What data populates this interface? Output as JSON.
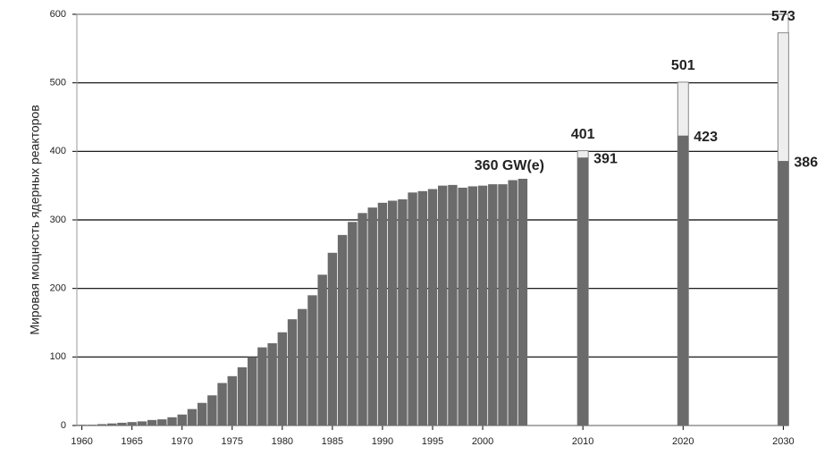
{
  "chart_data": {
    "type": "bar",
    "ylabel": "Мировая мощность ядерных реакторов",
    "x": [
      1960,
      1961,
      1962,
      1963,
      1964,
      1965,
      1966,
      1967,
      1968,
      1969,
      1970,
      1971,
      1972,
      1973,
      1974,
      1975,
      1976,
      1977,
      1978,
      1979,
      1980,
      1981,
      1982,
      1983,
      1984,
      1985,
      1986,
      1987,
      1988,
      1989,
      1990,
      1991,
      1992,
      1993,
      1994,
      1995,
      1996,
      1997,
      1998,
      1999,
      2000,
      2001,
      2002,
      2003,
      2004,
      2010,
      2020,
      2030
    ],
    "series": [
      {
        "color": "#6b6b6b",
        "values": [
          1,
          1,
          2,
          3,
          4,
          5,
          6,
          8,
          9,
          12,
          16,
          24,
          33,
          44,
          62,
          72,
          85,
          100,
          114,
          120,
          136,
          155,
          170,
          190,
          220,
          252,
          278,
          297,
          310,
          318,
          325,
          328,
          330,
          340,
          342,
          345,
          350,
          351,
          347,
          349,
          350,
          352,
          352,
          358,
          360,
          391,
          423,
          386
        ],
        "value_labels": [
          null,
          null,
          null,
          null,
          null,
          null,
          null,
          null,
          null,
          null,
          null,
          null,
          null,
          null,
          null,
          null,
          null,
          null,
          null,
          null,
          null,
          null,
          null,
          null,
          null,
          null,
          null,
          null,
          null,
          null,
          null,
          null,
          null,
          null,
          null,
          null,
          null,
          null,
          null,
          null,
          null,
          null,
          null,
          null,
          "360 GW(e)",
          "391",
          "423",
          "386"
        ]
      },
      {
        "color": "#eeeeee",
        "values": [
          null,
          null,
          null,
          null,
          null,
          null,
          null,
          null,
          null,
          null,
          null,
          null,
          null,
          null,
          null,
          null,
          null,
          null,
          null,
          null,
          null,
          null,
          null,
          null,
          null,
          null,
          null,
          null,
          null,
          null,
          null,
          null,
          null,
          null,
          null,
          null,
          null,
          null,
          null,
          null,
          null,
          null,
          null,
          null,
          null,
          401,
          501,
          573
        ]
      }
    ],
    "xlim": [
      1959.5,
      2030.5
    ],
    "xticks": [
      1960,
      1965,
      1970,
      1975,
      1980,
      1985,
      1990,
      1995,
      2000,
      2010,
      2020,
      2030
    ],
    "ylim": [
      0,
      600
    ],
    "yticks": [
      0,
      100,
      200,
      300,
      400,
      500,
      600
    ],
    "grid": true
  }
}
